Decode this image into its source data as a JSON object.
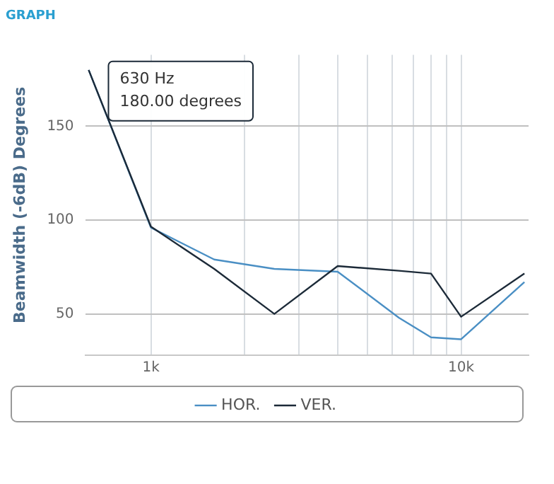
{
  "chart_data": {
    "type": "line",
    "title": "GRAPH",
    "ylabel": "Beamwidth (-6dB) Degrees",
    "x": [
      630,
      1000,
      1600,
      2500,
      4000,
      6300,
      8000,
      10000,
      16000
    ],
    "series": [
      {
        "name": "HOR.",
        "color": "#4a8fc4",
        "values": [
          180,
          96,
          79,
          74,
          72.5,
          48,
          37.5,
          36.5,
          67
        ]
      },
      {
        "name": "VER.",
        "color": "#1c2a38",
        "values": [
          180,
          96.5,
          74,
          50,
          75.5,
          73,
          71.5,
          48.5,
          71.5
        ]
      }
    ],
    "log": "x",
    "xlim": [
      614,
      16500
    ],
    "ylim": [
      28,
      188
    ],
    "xticks": [
      {
        "value": 1000,
        "label": "1k"
      },
      {
        "value": 2000,
        "label": null
      },
      {
        "value": 3000,
        "label": null
      },
      {
        "value": 4000,
        "label": null
      },
      {
        "value": 5000,
        "label": null
      },
      {
        "value": 6000,
        "label": null
      },
      {
        "value": 7000,
        "label": null
      },
      {
        "value": 8000,
        "label": null
      },
      {
        "value": 9000,
        "label": null
      },
      {
        "value": 10000,
        "label": "10k"
      }
    ],
    "yticks": [
      50,
      100,
      150
    ],
    "grid": true,
    "legend": "bottom",
    "marker": "none",
    "line_style": "solid",
    "annotations": [
      {
        "text": "630 Hz\n180.00 degrees",
        "x": 630,
        "y": 180
      }
    ]
  }
}
